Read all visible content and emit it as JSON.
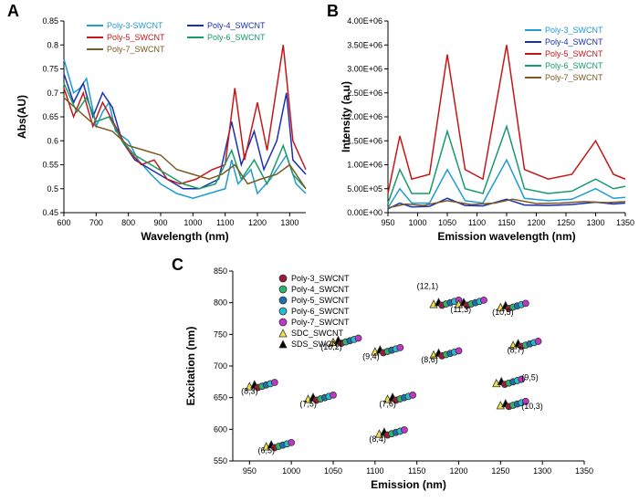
{
  "panelA": {
    "label": "A",
    "type": "line",
    "xlabel": "Wavelength (nm)",
    "ylabel": "Abs(AU)",
    "xlim": [
      600,
      1350
    ],
    "ylim": [
      0.45,
      0.85
    ],
    "xticks": [
      600,
      700,
      800,
      900,
      1000,
      1100,
      1200,
      1300
    ],
    "yticks": [
      0.45,
      0.5,
      0.55,
      0.6,
      0.65,
      0.7,
      0.75,
      0.8,
      0.85
    ],
    "legend": [
      {
        "label": "Poly-3-SWCNT",
        "color": "#1f9bd1"
      },
      {
        "label": "Poly-4_SWCNT",
        "color": "#1a2fb5"
      },
      {
        "label": "Poly-5_SWCNT",
        "color": "#c51717"
      },
      {
        "label": "Poly-6_SWCNT",
        "color": "#179b6a"
      },
      {
        "label": "Poly-7_SWCNT",
        "color": "#7a5a20"
      }
    ],
    "series": [
      {
        "color": "#1f9bd1",
        "pts": [
          [
            600,
            0.77
          ],
          [
            630,
            0.7
          ],
          [
            650,
            0.71
          ],
          [
            670,
            0.73
          ],
          [
            700,
            0.63
          ],
          [
            720,
            0.66
          ],
          [
            740,
            0.68
          ],
          [
            760,
            0.62
          ],
          [
            800,
            0.6
          ],
          [
            830,
            0.56
          ],
          [
            870,
            0.53
          ],
          [
            900,
            0.51
          ],
          [
            950,
            0.49
          ],
          [
            1000,
            0.48
          ],
          [
            1050,
            0.49
          ],
          [
            1100,
            0.5
          ],
          [
            1120,
            0.56
          ],
          [
            1140,
            0.51
          ],
          [
            1180,
            0.54
          ],
          [
            1200,
            0.49
          ],
          [
            1240,
            0.52
          ],
          [
            1290,
            0.57
          ],
          [
            1320,
            0.51
          ],
          [
            1350,
            0.49
          ]
        ]
      },
      {
        "color": "#1a2fb5",
        "pts": [
          [
            600,
            0.74
          ],
          [
            630,
            0.68
          ],
          [
            660,
            0.72
          ],
          [
            690,
            0.65
          ],
          [
            720,
            0.7
          ],
          [
            750,
            0.67
          ],
          [
            780,
            0.6
          ],
          [
            820,
            0.56
          ],
          [
            870,
            0.54
          ],
          [
            920,
            0.52
          ],
          [
            970,
            0.5
          ],
          [
            1020,
            0.5
          ],
          [
            1080,
            0.52
          ],
          [
            1120,
            0.64
          ],
          [
            1150,
            0.55
          ],
          [
            1190,
            0.62
          ],
          [
            1220,
            0.54
          ],
          [
            1260,
            0.6
          ],
          [
            1290,
            0.7
          ],
          [
            1310,
            0.56
          ],
          [
            1350,
            0.53
          ]
        ]
      },
      {
        "color": "#c51717",
        "pts": [
          [
            600,
            0.71
          ],
          [
            630,
            0.65
          ],
          [
            660,
            0.7
          ],
          [
            690,
            0.63
          ],
          [
            720,
            0.68
          ],
          [
            760,
            0.63
          ],
          [
            800,
            0.58
          ],
          [
            840,
            0.55
          ],
          [
            880,
            0.56
          ],
          [
            920,
            0.52
          ],
          [
            960,
            0.51
          ],
          [
            1010,
            0.52
          ],
          [
            1060,
            0.54
          ],
          [
            1100,
            0.55
          ],
          [
            1130,
            0.71
          ],
          [
            1160,
            0.56
          ],
          [
            1200,
            0.68
          ],
          [
            1230,
            0.58
          ],
          [
            1280,
            0.8
          ],
          [
            1310,
            0.6
          ],
          [
            1350,
            0.54
          ]
        ]
      },
      {
        "color": "#179b6a",
        "pts": [
          [
            600,
            0.72
          ],
          [
            640,
            0.66
          ],
          [
            670,
            0.69
          ],
          [
            700,
            0.64
          ],
          [
            740,
            0.65
          ],
          [
            780,
            0.6
          ],
          [
            820,
            0.57
          ],
          [
            870,
            0.55
          ],
          [
            920,
            0.53
          ],
          [
            970,
            0.51
          ],
          [
            1020,
            0.5
          ],
          [
            1070,
            0.51
          ],
          [
            1120,
            0.58
          ],
          [
            1150,
            0.52
          ],
          [
            1190,
            0.56
          ],
          [
            1230,
            0.51
          ],
          [
            1280,
            0.59
          ],
          [
            1310,
            0.53
          ],
          [
            1350,
            0.5
          ]
        ]
      },
      {
        "color": "#7a5a20",
        "pts": [
          [
            600,
            0.69
          ],
          [
            650,
            0.66
          ],
          [
            700,
            0.63
          ],
          [
            750,
            0.62
          ],
          [
            800,
            0.59
          ],
          [
            850,
            0.58
          ],
          [
            900,
            0.57
          ],
          [
            950,
            0.54
          ],
          [
            1000,
            0.53
          ],
          [
            1050,
            0.52
          ],
          [
            1090,
            0.53
          ],
          [
            1130,
            0.55
          ],
          [
            1170,
            0.51
          ],
          [
            1210,
            0.52
          ],
          [
            1260,
            0.53
          ],
          [
            1300,
            0.55
          ],
          [
            1350,
            0.5
          ]
        ]
      }
    ]
  },
  "panelB": {
    "label": "B",
    "type": "line",
    "xlabel": "Emission wavelength (nm)",
    "ylabel": "Intensity (a.u)",
    "xlim": [
      950,
      1350
    ],
    "ylim": [
      0,
      4000000
    ],
    "xticks": [
      950,
      1000,
      1050,
      1100,
      1150,
      1200,
      1250,
      1300,
      1350
    ],
    "yticks": [
      0,
      500000,
      1000000,
      1500000,
      2000000,
      2500000,
      3000000,
      3500000,
      4000000
    ],
    "yticklabels": [
      "0.00E+00",
      "5.00E+05",
      "1.00E+06",
      "1.50E+06",
      "2.00E+06",
      "2.50E+06",
      "3.00E+06",
      "3.50E+06",
      "4.00E+06"
    ],
    "legend": [
      {
        "label": "Poly-3_SWCNT",
        "color": "#1f9bd1"
      },
      {
        "label": "Poly-4_SWCNT",
        "color": "#1a2fb5"
      },
      {
        "label": "Poly-5_SWCNT",
        "color": "#c51717"
      },
      {
        "label": "Poly-6_SWCNT",
        "color": "#179b6a"
      },
      {
        "label": "Poly-7_SWCNT",
        "color": "#7a5a20"
      }
    ],
    "series": [
      {
        "color": "#c51717",
        "pts": [
          [
            950,
            400000
          ],
          [
            970,
            1600000
          ],
          [
            990,
            700000
          ],
          [
            1020,
            800000
          ],
          [
            1050,
            3300000
          ],
          [
            1080,
            900000
          ],
          [
            1110,
            700000
          ],
          [
            1150,
            3500000
          ],
          [
            1180,
            900000
          ],
          [
            1220,
            700000
          ],
          [
            1260,
            800000
          ],
          [
            1300,
            1500000
          ],
          [
            1330,
            800000
          ],
          [
            1350,
            700000
          ]
        ]
      },
      {
        "color": "#179b6a",
        "pts": [
          [
            950,
            200000
          ],
          [
            970,
            900000
          ],
          [
            990,
            400000
          ],
          [
            1020,
            400000
          ],
          [
            1050,
            1700000
          ],
          [
            1080,
            500000
          ],
          [
            1110,
            400000
          ],
          [
            1150,
            1800000
          ],
          [
            1180,
            500000
          ],
          [
            1220,
            400000
          ],
          [
            1260,
            450000
          ],
          [
            1300,
            700000
          ],
          [
            1330,
            500000
          ],
          [
            1350,
            550000
          ]
        ]
      },
      {
        "color": "#1f9bd1",
        "pts": [
          [
            950,
            100000
          ],
          [
            970,
            500000
          ],
          [
            990,
            200000
          ],
          [
            1020,
            200000
          ],
          [
            1050,
            900000
          ],
          [
            1080,
            250000
          ],
          [
            1110,
            200000
          ],
          [
            1150,
            1100000
          ],
          [
            1180,
            300000
          ],
          [
            1220,
            250000
          ],
          [
            1260,
            280000
          ],
          [
            1300,
            500000
          ],
          [
            1330,
            300000
          ],
          [
            1350,
            320000
          ]
        ]
      },
      {
        "color": "#1a2fb5",
        "pts": [
          [
            950,
            80000
          ],
          [
            970,
            200000
          ],
          [
            990,
            120000
          ],
          [
            1020,
            130000
          ],
          [
            1050,
            300000
          ],
          [
            1080,
            150000
          ],
          [
            1110,
            140000
          ],
          [
            1150,
            280000
          ],
          [
            1180,
            160000
          ],
          [
            1220,
            150000
          ],
          [
            1260,
            170000
          ],
          [
            1300,
            220000
          ],
          [
            1330,
            180000
          ],
          [
            1350,
            200000
          ]
        ]
      },
      {
        "color": "#7a5a20",
        "pts": [
          [
            950,
            100000
          ],
          [
            980,
            180000
          ],
          [
            1010,
            150000
          ],
          [
            1050,
            250000
          ],
          [
            1090,
            170000
          ],
          [
            1130,
            200000
          ],
          [
            1160,
            280000
          ],
          [
            1200,
            190000
          ],
          [
            1240,
            200000
          ],
          [
            1280,
            230000
          ],
          [
            1320,
            210000
          ],
          [
            1350,
            230000
          ]
        ]
      }
    ]
  },
  "panelC": {
    "label": "C",
    "type": "scatter",
    "xlabel": "Emission (nm)",
    "ylabel": "Excitation (nm)",
    "xlim": [
      930,
      1350
    ],
    "ylim": [
      550,
      850
    ],
    "xticks": [
      950,
      1000,
      1050,
      1100,
      1150,
      1200,
      1250,
      1300,
      1350
    ],
    "yticks": [
      550,
      600,
      650,
      700,
      750,
      800,
      850
    ],
    "legend": [
      {
        "label": "Poly-3_SWCNT",
        "color": "#9e1a3b",
        "marker": "circle"
      },
      {
        "label": "Poly-4_SWCNT",
        "color": "#2bb56d",
        "marker": "circle"
      },
      {
        "label": "Poly-5_SWCNT",
        "color": "#1f6fb0",
        "marker": "circle"
      },
      {
        "label": "Poly-6_SWCNT",
        "color": "#20c0cf",
        "marker": "circle"
      },
      {
        "label": "Poly-7_SWCNT",
        "color": "#c036c9",
        "marker": "circle"
      },
      {
        "label": "SDC_SWCNT",
        "color": "#f2e24a",
        "marker": "triangle"
      },
      {
        "label": "SDS_SWCNT",
        "color": "#000000",
        "marker": "triangle"
      }
    ],
    "clusters": [
      {
        "label": "(8,3)",
        "em": 960,
        "ex": 670,
        "lx": 940,
        "ly": 656
      },
      {
        "label": "(6,5)",
        "em": 980,
        "ex": 575,
        "lx": 960,
        "ly": 562
      },
      {
        "label": "(7,5)",
        "em": 1030,
        "ex": 650,
        "lx": 1010,
        "ly": 636
      },
      {
        "label": "(10,2)",
        "em": 1060,
        "ex": 740,
        "lx": 1035,
        "ly": 726
      },
      {
        "label": "(8,4)",
        "em": 1115,
        "ex": 595,
        "lx": 1093,
        "ly": 580
      },
      {
        "label": "(9,4)",
        "em": 1110,
        "ex": 725,
        "lx": 1085,
        "ly": 711
      },
      {
        "label": "(7,6)",
        "em": 1125,
        "ex": 650,
        "lx": 1105,
        "ly": 636
      },
      {
        "label": "(12,1)",
        "em": 1180,
        "ex": 800,
        "lx": 1150,
        "ly": 822
      },
      {
        "label": "(8,6)",
        "em": 1180,
        "ex": 720,
        "lx": 1155,
        "ly": 706
      },
      {
        "label": "(11,3)",
        "em": 1210,
        "ex": 800,
        "lx": 1190,
        "ly": 785
      },
      {
        "label": "(10,5)",
        "em": 1260,
        "ex": 795,
        "lx": 1240,
        "ly": 781
      },
      {
        "label": "(8,7)",
        "em": 1275,
        "ex": 735,
        "lx": 1258,
        "ly": 721
      },
      {
        "label": "(9,5)",
        "em": 1255,
        "ex": 675,
        "lx": 1275,
        "ly": 678
      },
      {
        "label": "(10,3)",
        "em": 1260,
        "ex": 640,
        "lx": 1275,
        "ly": 632
      }
    ],
    "marker_colors": [
      "#9e1a3b",
      "#2bb56d",
      "#1f6fb0",
      "#20c0cf",
      "#c036c9"
    ],
    "tri_colors": [
      "#f2e24a",
      "#000000"
    ]
  }
}
